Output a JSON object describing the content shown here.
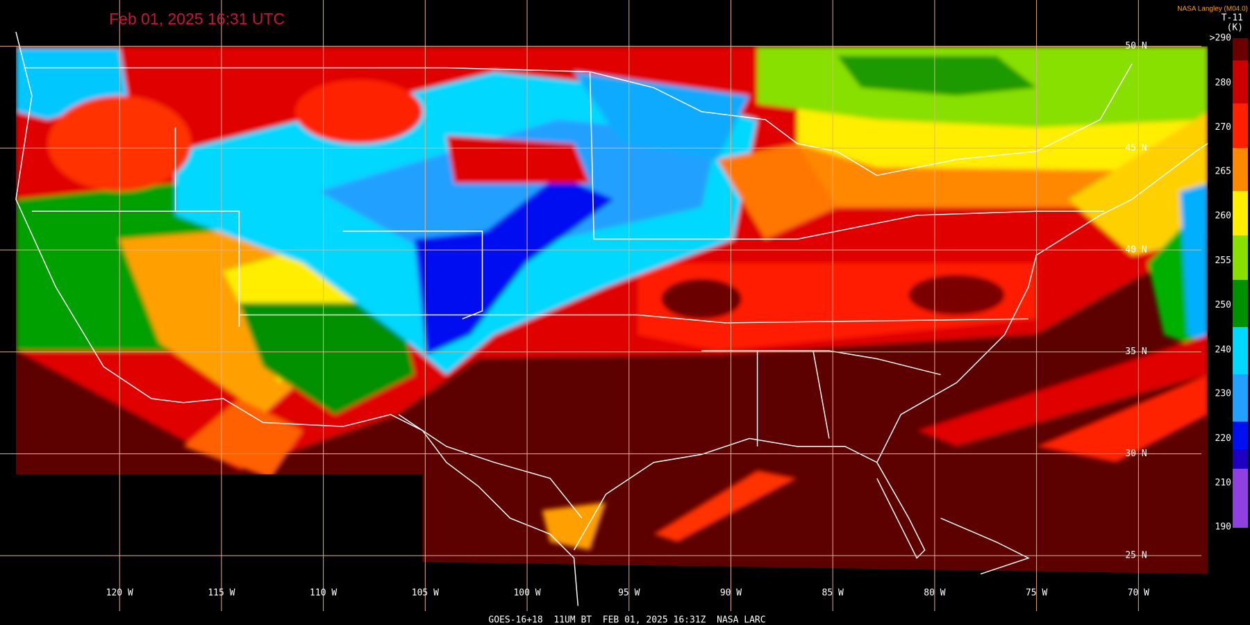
{
  "header": {
    "title": "Feb 01, 2025 16:31 UTC",
    "credit": "NASA Langley (M04.0)",
    "product": "T-11",
    "units": "(K)"
  },
  "map": {
    "longitude_labels": [
      "120 W",
      "115 W",
      "110 W",
      "105 W",
      "100 W",
      "95 W",
      "90 W",
      "85 W",
      "80 W",
      "75 W",
      "70 W"
    ],
    "latitude_labels": [
      "50 N",
      "45 N",
      "40 N",
      "35 N",
      "30 N",
      "25 N"
    ]
  },
  "colorbar": {
    "labels": [
      ">290",
      "280",
      "270",
      "265",
      "260",
      "255",
      "250",
      "240",
      "230",
      "220",
      "210",
      "190"
    ]
  },
  "footer": {
    "caption": "GOES-16+18  11UM BT  FEB 01, 2025 16:31Z  NASA LARC"
  }
}
